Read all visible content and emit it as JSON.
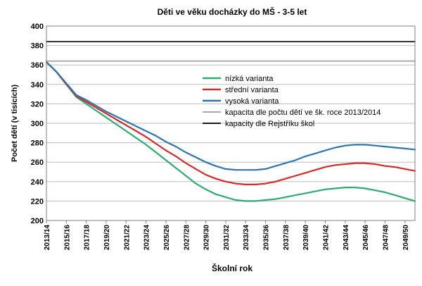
{
  "chart_data": {
    "type": "line",
    "title": "Děti ve věku docházky do MŠ - 3-5 let",
    "xlabel": "Školní rok",
    "ylabel": "Počet dětí (v tisících)",
    "ylim": [
      200,
      400
    ],
    "yticks": [
      200,
      220,
      240,
      260,
      280,
      300,
      320,
      340,
      360,
      380,
      400
    ],
    "grid": true,
    "legend_position": "right",
    "x": [
      "2013/14",
      "2014/15",
      "2015/16",
      "2016/17",
      "2017/18",
      "2018/19",
      "2019/20",
      "2020/21",
      "2021/22",
      "2022/23",
      "2023/24",
      "2024/25",
      "2025/26",
      "2026/27",
      "2027/28",
      "2028/29",
      "2029/30",
      "2030/31",
      "2031/32",
      "2032/33",
      "2033/34",
      "2034/35",
      "2035/36",
      "2036/37",
      "2037/38",
      "2038/39",
      "2039/40",
      "2040/41",
      "2041/42",
      "2042/43",
      "2043/44",
      "2044/45",
      "2045/46",
      "2046/47",
      "2047/48",
      "2048/49",
      "2049/50",
      "2050/51"
    ],
    "xtick_labels": [
      "2013/14",
      "2015/16",
      "2017/18",
      "2019/20",
      "2021/22",
      "2023/24",
      "2025/26",
      "2027/28",
      "2029/30",
      "2031/32",
      "2033/34",
      "2035/36",
      "2037/38",
      "2039/40",
      "2041/42",
      "2043/44",
      "2045/46",
      "2047/48",
      "2049/50"
    ],
    "series": [
      {
        "name": "nízká varianta",
        "color": "#2eaa6e",
        "values": [
          363,
          353,
          340,
          327,
          320,
          313,
          306,
          299,
          292,
          285,
          278,
          270,
          262,
          254,
          246,
          238,
          232,
          227,
          224,
          221,
          220,
          220,
          221,
          222,
          224,
          226,
          228,
          230,
          232,
          233,
          234,
          234,
          233,
          231,
          229,
          226,
          223,
          220
        ]
      },
      {
        "name": "střední varianta",
        "color": "#d42a2a",
        "values": [
          363,
          353,
          340,
          328,
          322,
          316,
          310,
          304,
          298,
          292,
          286,
          279,
          272,
          266,
          259,
          253,
          247,
          243,
          240,
          238,
          237,
          237,
          238,
          240,
          243,
          246,
          249,
          252,
          255,
          257,
          258,
          259,
          259,
          258,
          256,
          255,
          253,
          251
        ]
      },
      {
        "name": "vysoká varianta",
        "color": "#2e74b0",
        "values": [
          363,
          353,
          341,
          329,
          324,
          318,
          312,
          307,
          302,
          297,
          292,
          287,
          281,
          276,
          270,
          265,
          260,
          256,
          253,
          252,
          252,
          252,
          253,
          256,
          259,
          262,
          266,
          269,
          272,
          275,
          277,
          278,
          278,
          277,
          276,
          275,
          274,
          273
        ]
      },
      {
        "name": "kapacita dle počtu dětí ve šk. roce 2013/2014",
        "color": "#a8a8a8",
        "constant": 364
      },
      {
        "name": "kapacity dle Rejstříku škol",
        "color": "#1a1a1a",
        "constant": 384
      }
    ]
  }
}
